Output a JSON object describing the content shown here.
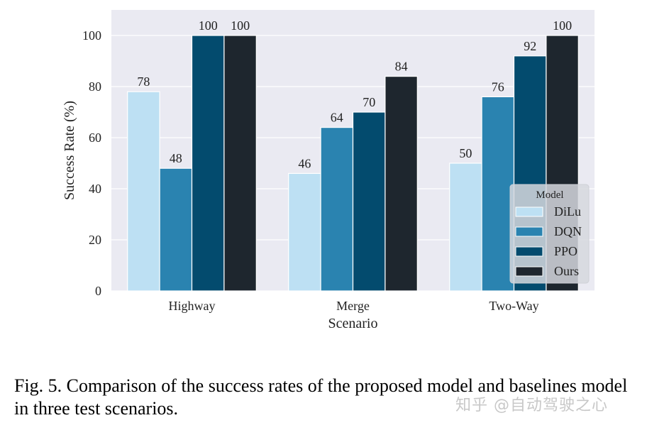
{
  "chart_data": {
    "type": "bar",
    "title": "",
    "xlabel": "Scenario",
    "ylabel": "Success Rate (%)",
    "ylim": [
      0,
      110
    ],
    "yticks": [
      0,
      20,
      40,
      60,
      80,
      100
    ],
    "grid": true,
    "categories": [
      "Highway",
      "Merge",
      "Two-Way"
    ],
    "series": [
      {
        "name": "DiLu",
        "color": "#bde0f3",
        "values": [
          78,
          46,
          50
        ]
      },
      {
        "name": "DQN",
        "color": "#2a83b0",
        "values": [
          48,
          64,
          76
        ]
      },
      {
        "name": "PPO",
        "color": "#034b6e",
        "values": [
          100,
          70,
          92
        ]
      },
      {
        "name": "Ours",
        "color": "#1e262e",
        "values": [
          100,
          84,
          100
        ]
      }
    ],
    "legend": {
      "title": "Model",
      "placement": "lower-right"
    },
    "background": "#eaeaf2"
  },
  "caption": "Fig. 5.  Comparison of the success rates of the proposed model and baselines model in three test scenarios.",
  "watermark": "知乎 @自动驾驶之心"
}
